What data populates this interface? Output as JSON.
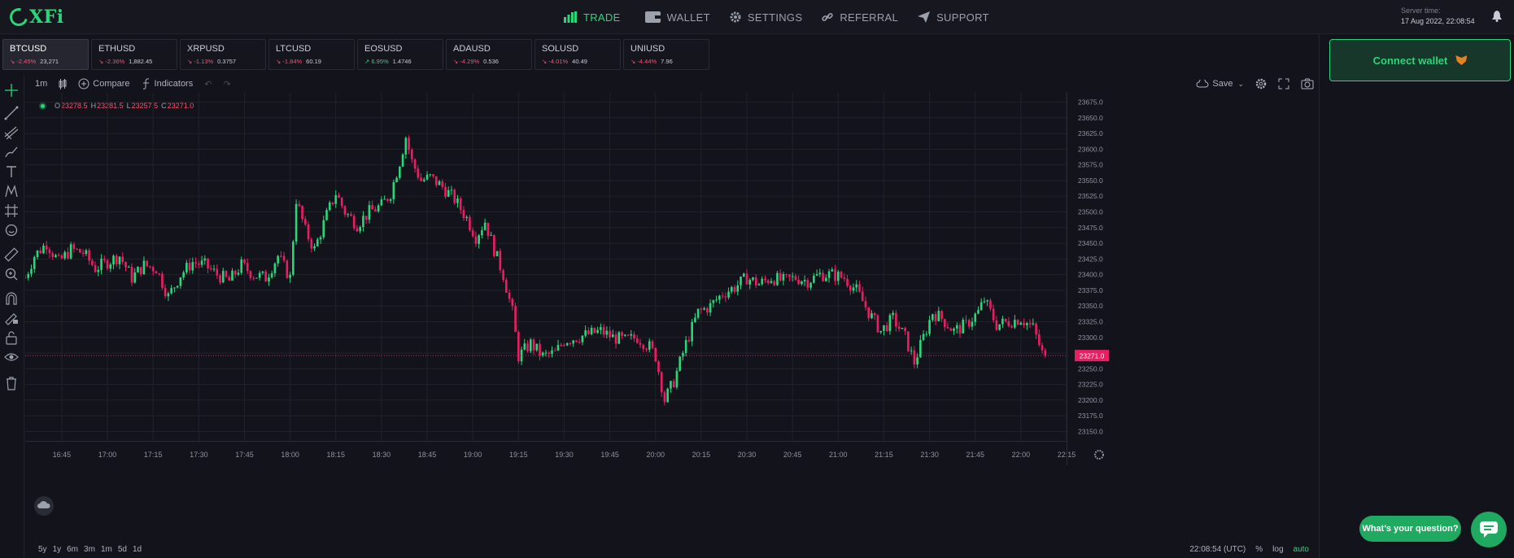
{
  "brand": {
    "logo_text": "XFi"
  },
  "nav": [
    {
      "label": "TRADE",
      "icon": "bar-chart-icon",
      "active": true
    },
    {
      "label": "WALLET",
      "icon": "wallet-icon"
    },
    {
      "label": "SETTINGS",
      "icon": "gear-icon"
    },
    {
      "label": "REFERRAL",
      "icon": "link-icon"
    },
    {
      "label": "SUPPORT",
      "icon": "send-icon"
    }
  ],
  "server": {
    "label": "Server time:",
    "value": "17 Aug 2022, 22:08:54"
  },
  "pairs": [
    {
      "name": "BTCUSD",
      "change": "-2.45%",
      "price": "23,271",
      "up": false
    },
    {
      "name": "ETHUSD",
      "change": "-2.36%",
      "price": "1,882.45",
      "up": false
    },
    {
      "name": "XRPUSD",
      "change": "-1.13%",
      "price": "0.3757",
      "up": false
    },
    {
      "name": "LTCUSD",
      "change": "-1.84%",
      "price": "60.19",
      "up": false
    },
    {
      "name": "EOSUSD",
      "change": "6.95%",
      "price": "1.4746",
      "up": true
    },
    {
      "name": "ADAUSD",
      "change": "-4.29%",
      "price": "0.536",
      "up": false
    },
    {
      "name": "SOLUSD",
      "change": "-4.01%",
      "price": "40.49",
      "up": false
    },
    {
      "name": "UNIUSD",
      "change": "-4.44%",
      "price": "7.96",
      "up": false
    }
  ],
  "connect_wallet": "Connect wallet",
  "chart_toolbar": {
    "interval": "1m",
    "compare": "Compare",
    "indicators": "Indicators",
    "save": "Save"
  },
  "legend": {
    "o_label": "O",
    "o": "23278.5",
    "h_label": "H",
    "h": "23281.5",
    "l_label": "L",
    "l": "23257.5",
    "c_label": "C",
    "c": "23271.0"
  },
  "timeframes": [
    "5y",
    "1y",
    "6m",
    "3m",
    "1m",
    "5d",
    "1d"
  ],
  "bottom_right": {
    "time": "22:08:54 (UTC)",
    "percent": "%",
    "log": "log",
    "auto": "auto"
  },
  "question_button": "What's your question?",
  "colors": {
    "accent": "#2bd67b",
    "up": "#26a69a",
    "down": "#e91e63"
  },
  "chart_data": {
    "type": "candlestick",
    "symbol": "BTCUSD",
    "x_ticks": [
      "16:45",
      "17:00",
      "17:15",
      "17:30",
      "17:45",
      "18:00",
      "18:15",
      "18:30",
      "18:45",
      "19:00",
      "19:15",
      "19:30",
      "19:45",
      "20:00",
      "20:15",
      "20:30",
      "20:45",
      "21:00",
      "21:15",
      "21:30",
      "21:45",
      "22:00",
      "22:15"
    ],
    "y_ticks": [
      23150,
      23175,
      23200,
      23225,
      23250,
      23275,
      23300,
      23325,
      23350,
      23375,
      23400,
      23425,
      23450,
      23475,
      23500,
      23525,
      23550,
      23575,
      23600,
      23625,
      23650,
      23675
    ],
    "ylim": [
      23135,
      23690
    ],
    "last_price": "23271.0",
    "x_range": [
      "16:33",
      "22:15"
    ],
    "close_path": [
      [
        "16:33",
        23395
      ],
      [
        "16:36",
        23430
      ],
      [
        "16:40",
        23450
      ],
      [
        "16:44",
        23420
      ],
      [
        "16:48",
        23440
      ],
      [
        "16:52",
        23435
      ],
      [
        "16:56",
        23410
      ],
      [
        "17:00",
        23420
      ],
      [
        "17:04",
        23430
      ],
      [
        "17:08",
        23395
      ],
      [
        "17:12",
        23415
      ],
      [
        "17:16",
        23410
      ],
      [
        "17:20",
        23365
      ],
      [
        "17:24",
        23400
      ],
      [
        "17:28",
        23420
      ],
      [
        "17:32",
        23415
      ],
      [
        "17:36",
        23400
      ],
      [
        "17:40",
        23390
      ],
      [
        "17:44",
        23415
      ],
      [
        "17:48",
        23400
      ],
      [
        "17:52",
        23395
      ],
      [
        "17:56",
        23430
      ],
      [
        "18:00",
        23395
      ],
      [
        "18:02",
        23520
      ],
      [
        "18:05",
        23470
      ],
      [
        "18:08",
        23440
      ],
      [
        "18:12",
        23495
      ],
      [
        "18:15",
        23530
      ],
      [
        "18:18",
        23500
      ],
      [
        "18:22",
        23480
      ],
      [
        "18:26",
        23500
      ],
      [
        "18:30",
        23510
      ],
      [
        "18:33",
        23530
      ],
      [
        "18:36",
        23580
      ],
      [
        "18:38",
        23620
      ],
      [
        "18:40",
        23580
      ],
      [
        "18:43",
        23550
      ],
      [
        "18:46",
        23555
      ],
      [
        "18:50",
        23540
      ],
      [
        "18:54",
        23520
      ],
      [
        "18:58",
        23490
      ],
      [
        "19:01",
        23460
      ],
      [
        "19:04",
        23485
      ],
      [
        "19:07",
        23440
      ],
      [
        "19:10",
        23400
      ],
      [
        "19:13",
        23340
      ],
      [
        "19:15",
        23270
      ],
      [
        "19:19",
        23290
      ],
      [
        "19:23",
        23270
      ],
      [
        "19:27",
        23275
      ],
      [
        "19:30",
        23295
      ],
      [
        "19:34",
        23300
      ],
      [
        "19:38",
        23305
      ],
      [
        "19:42",
        23310
      ],
      [
        "19:46",
        23300
      ],
      [
        "19:50",
        23295
      ],
      [
        "19:54",
        23300
      ],
      [
        "19:58",
        23285
      ],
      [
        "20:00",
        23270
      ],
      [
        "20:03",
        23200
      ],
      [
        "20:06",
        23230
      ],
      [
        "20:10",
        23290
      ],
      [
        "20:14",
        23340
      ],
      [
        "20:18",
        23350
      ],
      [
        "20:22",
        23370
      ],
      [
        "20:26",
        23380
      ],
      [
        "20:30",
        23395
      ],
      [
        "20:34",
        23385
      ],
      [
        "20:38",
        23395
      ],
      [
        "20:42",
        23390
      ],
      [
        "20:46",
        23395
      ],
      [
        "20:50",
        23390
      ],
      [
        "20:54",
        23400
      ],
      [
        "20:58",
        23400
      ],
      [
        "21:02",
        23395
      ],
      [
        "21:06",
        23375
      ],
      [
        "21:10",
        23340
      ],
      [
        "21:14",
        23310
      ],
      [
        "21:18",
        23330
      ],
      [
        "21:22",
        23300
      ],
      [
        "21:25",
        23260
      ],
      [
        "21:28",
        23300
      ],
      [
        "21:31",
        23340
      ],
      [
        "21:34",
        23330
      ],
      [
        "21:38",
        23310
      ],
      [
        "21:42",
        23320
      ],
      [
        "21:46",
        23340
      ],
      [
        "21:48",
        23360
      ],
      [
        "21:52",
        23320
      ],
      [
        "21:56",
        23325
      ],
      [
        "22:00",
        23330
      ],
      [
        "22:04",
        23315
      ],
      [
        "22:07",
        23275
      ],
      [
        "22:08",
        23271
      ]
    ]
  }
}
